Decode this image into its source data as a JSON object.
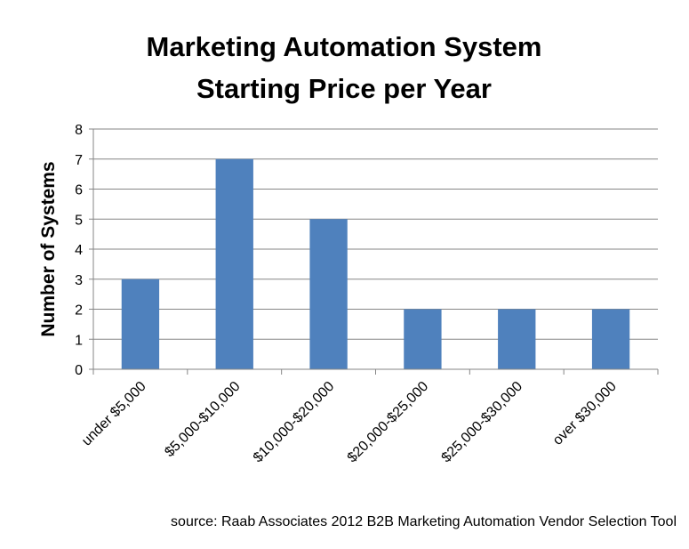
{
  "chart_data": {
    "type": "bar",
    "title_lines": [
      "Marketing Automation System",
      "Starting Price per Year"
    ],
    "ylabel": "Number of Systems",
    "xlabel": "",
    "categories": [
      "under $5,000",
      "$5,000-$10,000",
      "$10,000-$20,000",
      "$20,000-$25,000",
      "$25,000-$30,000",
      "over $30,000"
    ],
    "values": [
      3,
      7,
      5,
      2,
      2,
      2
    ],
    "ylim": [
      0,
      8
    ],
    "yticks": [
      "0",
      "1",
      "2",
      "3",
      "4",
      "5",
      "6",
      "7",
      "8"
    ],
    "grid": true,
    "legend": "none",
    "bar_color": "#4F81BD",
    "grid_color": "#868686",
    "source": "source: Raab Associates 2012 B2B Marketing Automation Vendor Selection Tool"
  }
}
